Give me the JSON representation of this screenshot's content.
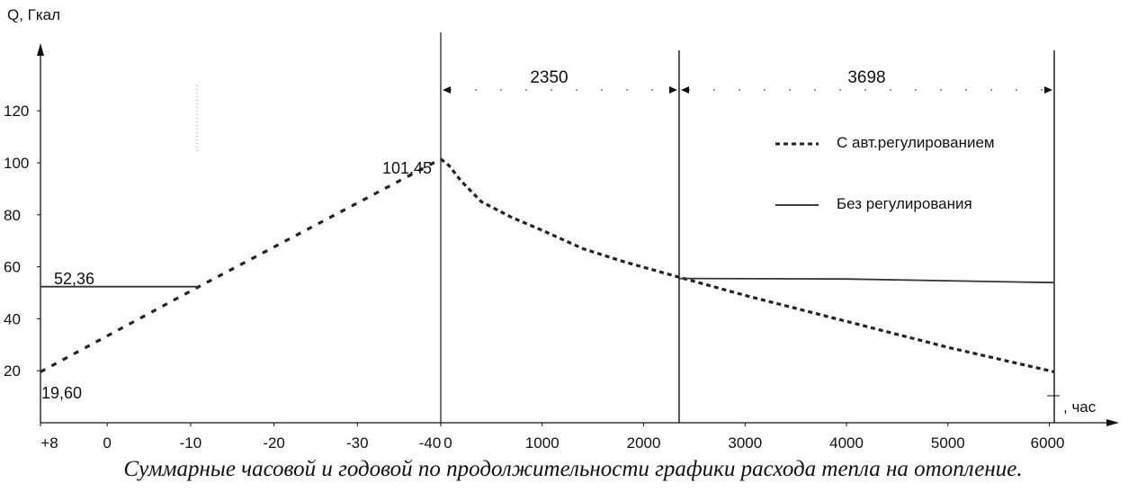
{
  "caption": "Суммарные часовой и годовой по продолжительности графики расхода тепла на отопление.",
  "chart_data": {
    "type": "line",
    "ylabel": "Q, Гкал",
    "ylim": [
      0,
      140
    ],
    "y_ticks": [
      "20",
      "40",
      "60",
      "80",
      "100",
      "120"
    ],
    "left_panel": {
      "x_ticks": [
        "+8",
        "0",
        "-10",
        "-20",
        "-30",
        "-40"
      ],
      "xlim": [
        8,
        -40
      ]
    },
    "right_panel": {
      "xlabel": ", час",
      "x_ticks": [
        "0",
        "1000",
        "2000",
        "3000",
        "4000",
        "5000",
        "6000"
      ],
      "xlim": [
        0,
        6048
      ]
    },
    "spans": [
      {
        "label": "2350",
        "from": 0,
        "to": 2350
      },
      {
        "label": "3698",
        "from": 2350,
        "to": 6048
      }
    ],
    "annotations": [
      "52,36",
      "101,45",
      "19,60"
    ],
    "legend": {
      "position": "top-right",
      "items": [
        {
          "name": "С авт.регулированием",
          "style": "dashed"
        },
        {
          "name": "Без регулирования",
          "style": "solid"
        }
      ]
    },
    "series": [
      {
        "name": "С авт.регулированием",
        "style": "dashed",
        "left_points": [
          [
            8,
            19.6
          ],
          [
            -11,
            52.36
          ],
          [
            -40,
            101.45
          ]
        ],
        "right_points": [
          [
            0,
            101.45
          ],
          [
            80,
            99
          ],
          [
            200,
            93
          ],
          [
            400,
            85
          ],
          [
            700,
            79
          ],
          [
            1000,
            74
          ],
          [
            1400,
            67
          ],
          [
            1800,
            62
          ],
          [
            2350,
            56
          ],
          [
            3000,
            49
          ],
          [
            4000,
            39
          ],
          [
            5000,
            29
          ],
          [
            6048,
            19.6
          ]
        ]
      },
      {
        "name": "Без регулирования",
        "style": "solid",
        "left_points": [
          [
            8,
            52.36
          ],
          [
            -11,
            52.36
          ]
        ],
        "right_points": [
          [
            2350,
            55.5
          ],
          [
            4000,
            55.3
          ],
          [
            6048,
            53.9
          ]
        ]
      }
    ]
  }
}
